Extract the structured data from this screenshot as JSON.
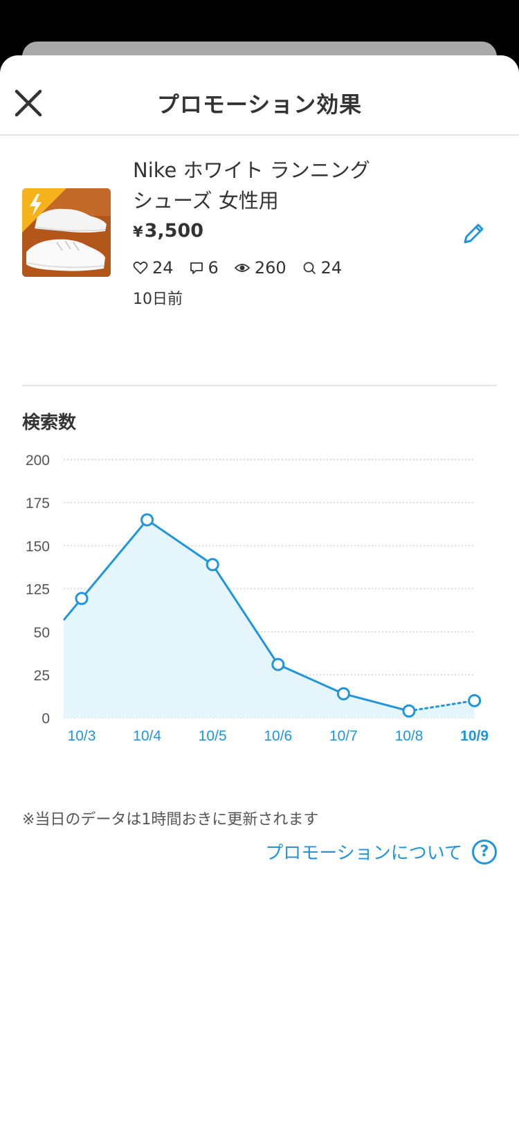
{
  "header": {
    "title": "プロモーション効果",
    "close_icon": "close-icon"
  },
  "item": {
    "title_line1": "Nike ホワイト ランニング",
    "title_line2": "シューズ 女性用",
    "currency": "¥",
    "price": "3,500",
    "likes": "24",
    "comments": "6",
    "views": "260",
    "searches": "24",
    "age": "10日前",
    "badge_icon": "lightning-icon",
    "edit_icon": "pencil-icon"
  },
  "section": {
    "title": "検索数"
  },
  "chart_data": {
    "type": "area",
    "title": "",
    "y_tick_labels": [
      "200",
      "175",
      "150",
      "125",
      "50",
      "25",
      "0"
    ],
    "y_tick_values": [
      200,
      175,
      150,
      125,
      50,
      25,
      0
    ],
    "categories": [
      "10/3",
      "10/4",
      "10/5",
      "10/6",
      "10/7",
      "10/8",
      "10/9"
    ],
    "series": [
      {
        "values": [
          108,
          165,
          139,
          31,
          14,
          4,
          10
        ],
        "final_segment_style": "dotted"
      }
    ],
    "grid": true,
    "line_color": "#1e95dd",
    "fill_color": "#e5f5fc",
    "highlight_category": "10/9"
  },
  "footer": {
    "note": "※当日のデータは1時間おきに更新されます",
    "about_link": "プロモーションについて",
    "help_icon": "?"
  }
}
